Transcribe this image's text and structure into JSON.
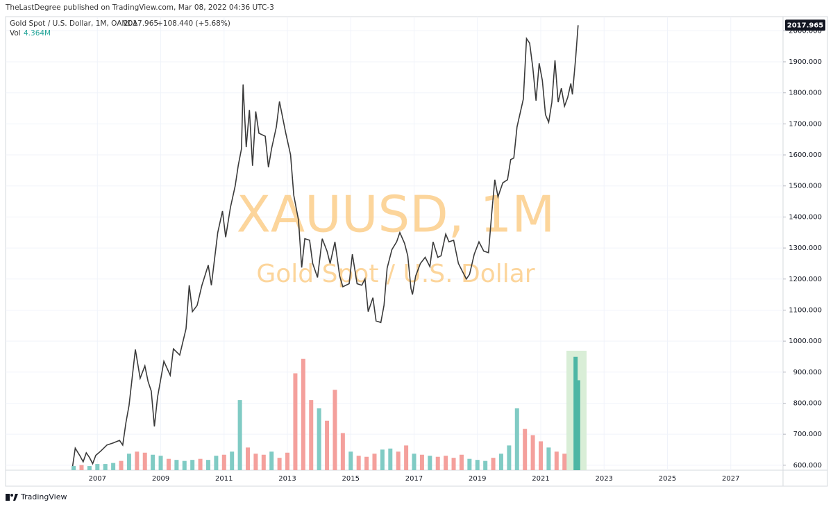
{
  "header": {
    "published": "TheLastDegree published on TradingView.com, Mar 08, 2022 04:36 UTC-3",
    "symbol": "Gold Spot / U.S. Dollar, 1M, OANDA",
    "price": "2017.965",
    "change": "+108.440 (+5.68%)",
    "vol_title": "Vol",
    "vol_value": "4.364M"
  },
  "footer": {
    "brand": "TradingView"
  },
  "chart_data": {
    "type": "line",
    "watermark": "XAUUSD, 1M",
    "watermark_subtitle": "Gold Spot / U.S. Dollar",
    "last_price_label": "2017.965",
    "xlim": [
      2004.1,
      2028.65
    ],
    "xticks": [
      2007,
      2009,
      2011,
      2013,
      2015,
      2017,
      2019,
      2021,
      2023,
      2025,
      2027
    ],
    "ylim": [
      584,
      2045.5
    ],
    "yticks": [
      {
        "value": 600,
        "label": "600.000"
      },
      {
        "value": 700,
        "label": "700.000"
      },
      {
        "value": 800,
        "label": "800.000"
      },
      {
        "value": 900,
        "label": "900.000"
      },
      {
        "value": 1000,
        "label": "1000.000"
      },
      {
        "value": 1100,
        "label": "1100.000"
      },
      {
        "value": 1200,
        "label": "1200.000"
      },
      {
        "value": 1300,
        "label": "1300.000"
      },
      {
        "value": 1400,
        "label": "1400.000"
      },
      {
        "value": 1500,
        "label": "1500.000"
      },
      {
        "value": 1600,
        "label": "1600.000"
      },
      {
        "value": 1700,
        "label": "1700.000"
      },
      {
        "value": 1800,
        "label": "1800.000"
      },
      {
        "value": 1900,
        "label": "1900.000"
      },
      {
        "value": 2000,
        "label": "2000.000"
      }
    ],
    "y2lim": [
      0,
      22
    ],
    "grid": true,
    "series": [
      {
        "name": "Gold Spot / U.S. Dollar",
        "color": "#3a3a3a",
        "x": [
          2006.2,
          2006.3,
          2006.45,
          2006.55,
          2006.65,
          2006.75,
          2006.85,
          2006.95,
          2007.1,
          2007.3,
          2007.5,
          2007.7,
          2007.8,
          2007.9,
          2008.0,
          2008.1,
          2008.2,
          2008.35,
          2008.5,
          2008.6,
          2008.7,
          2008.8,
          2008.9,
          2009.1,
          2009.3,
          2009.4,
          2009.6,
          2009.8,
          2009.9,
          2010.0,
          2010.15,
          2010.3,
          2010.5,
          2010.6,
          2010.8,
          2010.95,
          2011.05,
          2011.2,
          2011.35,
          2011.45,
          2011.55,
          2011.6,
          2011.7,
          2011.8,
          2011.9,
          2012.0,
          2012.1,
          2012.3,
          2012.4,
          2012.5,
          2012.65,
          2012.75,
          2012.85,
          2012.95,
          2013.1,
          2013.2,
          2013.35,
          2013.45,
          2013.55,
          2013.7,
          2013.8,
          2013.95,
          2014.1,
          2014.25,
          2014.35,
          2014.5,
          2014.65,
          2014.75,
          2014.95,
          2015.05,
          2015.2,
          2015.35,
          2015.45,
          2015.55,
          2015.7,
          2015.8,
          2015.95,
          2016.05,
          2016.15,
          2016.3,
          2016.45,
          2016.55,
          2016.7,
          2016.8,
          2016.9,
          2016.95,
          2017.05,
          2017.2,
          2017.35,
          2017.5,
          2017.6,
          2017.75,
          2017.85,
          2018.0,
          2018.1,
          2018.25,
          2018.4,
          2018.55,
          2018.65,
          2018.75,
          2018.9,
          2019.05,
          2019.2,
          2019.35,
          2019.45,
          2019.55,
          2019.65,
          2019.8,
          2019.95,
          2020.05,
          2020.15,
          2020.25,
          2020.45,
          2020.55,
          2020.65,
          2020.75,
          2020.85,
          2020.95,
          2021.05,
          2021.15,
          2021.25,
          2021.35,
          2021.45,
          2021.55,
          2021.65,
          2021.75,
          2021.85,
          2021.95,
          2022.0,
          2022.1,
          2022.18
        ],
        "values": [
          585,
          655,
          630,
          611,
          640,
          625,
          605,
          632,
          645,
          665,
          672,
          680,
          665,
          737,
          793,
          884,
          973,
          880,
          920,
          870,
          839,
          725,
          820,
          935,
          890,
          975,
          955,
          1040,
          1180,
          1095,
          1115,
          1180,
          1245,
          1180,
          1350,
          1419,
          1335,
          1430,
          1500,
          1567,
          1620,
          1827,
          1625,
          1745,
          1565,
          1740,
          1670,
          1660,
          1560,
          1620,
          1690,
          1772,
          1720,
          1670,
          1600,
          1470,
          1390,
          1237,
          1330,
          1325,
          1250,
          1205,
          1330,
          1290,
          1250,
          1320,
          1210,
          1175,
          1185,
          1280,
          1185,
          1180,
          1200,
          1095,
          1140,
          1065,
          1060,
          1115,
          1235,
          1295,
          1320,
          1350,
          1315,
          1275,
          1170,
          1150,
          1210,
          1250,
          1270,
          1240,
          1320,
          1270,
          1275,
          1345,
          1320,
          1325,
          1250,
          1220,
          1200,
          1215,
          1280,
          1320,
          1290,
          1285,
          1410,
          1520,
          1465,
          1510,
          1520,
          1585,
          1590,
          1690,
          1780,
          1975,
          1960,
          1880,
          1775,
          1895,
          1840,
          1730,
          1705,
          1770,
          1905,
          1770,
          1815,
          1757,
          1785,
          1830,
          1795,
          1910,
          2018
        ]
      },
      {
        "name": "Vol",
        "type": "bar",
        "axis": "y2",
        "x": [
          2006.25,
          2006.5,
          2006.75,
          2007,
          2007.25,
          2007.5,
          2007.75,
          2008,
          2008.25,
          2008.5,
          2008.75,
          2009,
          2009.25,
          2009.5,
          2009.75,
          2010,
          2010.25,
          2010.5,
          2010.75,
          2011,
          2011.25,
          2011.5,
          2011.75,
          2012,
          2012.25,
          2012.5,
          2012.75,
          2013,
          2013.25,
          2013.5,
          2013.75,
          2014,
          2014.25,
          2014.5,
          2014.75,
          2015,
          2015.25,
          2015.5,
          2015.75,
          2016,
          2016.25,
          2016.5,
          2016.75,
          2017,
          2017.25,
          2017.5,
          2017.75,
          2018,
          2018.25,
          2018.5,
          2018.75,
          2019,
          2019.25,
          2019.5,
          2019.75,
          2020,
          2020.25,
          2020.5,
          2020.75,
          2021,
          2021.25,
          2021.5,
          2021.75,
          2022.1,
          2022.18
        ],
        "values": [
          0.2,
          0.25,
          0.2,
          0.3,
          0.3,
          0.35,
          0.45,
          0.8,
          0.9,
          0.85,
          0.75,
          0.7,
          0.55,
          0.5,
          0.45,
          0.5,
          0.55,
          0.5,
          0.7,
          0.75,
          0.9,
          3.4,
          1.1,
          0.8,
          0.75,
          0.9,
          0.6,
          0.85,
          4.7,
          5.4,
          3.4,
          3.0,
          2.4,
          3.9,
          1.8,
          0.9,
          0.7,
          0.65,
          0.8,
          1.0,
          1.05,
          0.9,
          1.2,
          0.8,
          0.75,
          0.7,
          0.65,
          0.7,
          0.6,
          0.75,
          0.55,
          0.5,
          0.45,
          0.6,
          0.8,
          1.2,
          3.0,
          2.0,
          1.7,
          1.4,
          1.1,
          0.9,
          0.8,
          5.5,
          4.364
        ],
        "colors": [
          "#80cbc4",
          "#f4a09c",
          "#80cbc4",
          "#80cbc4",
          "#80cbc4",
          "#80cbc4",
          "#f4a09c",
          "#80cbc4",
          "#f4a09c",
          "#f4a09c",
          "#80cbc4",
          "#80cbc4",
          "#f4a09c",
          "#80cbc4",
          "#80cbc4",
          "#80cbc4",
          "#f4a09c",
          "#80cbc4",
          "#80cbc4",
          "#f4a09c",
          "#80cbc4",
          "#80cbc4",
          "#f4a09c",
          "#f4a09c",
          "#f4a09c",
          "#80cbc4",
          "#f4a09c",
          "#f4a09c",
          "#f4a09c",
          "#f4a09c",
          "#f4a09c",
          "#80cbc4",
          "#f4a09c",
          "#f4a09c",
          "#f4a09c",
          "#80cbc4",
          "#f4a09c",
          "#f4a09c",
          "#f4a09c",
          "#80cbc4",
          "#80cbc4",
          "#f4a09c",
          "#f4a09c",
          "#80cbc4",
          "#f4a09c",
          "#80cbc4",
          "#f4a09c",
          "#f4a09c",
          "#f4a09c",
          "#f4a09c",
          "#80cbc4",
          "#80cbc4",
          "#80cbc4",
          "#f4a09c",
          "#80cbc4",
          "#80cbc4",
          "#80cbc4",
          "#f4a09c",
          "#f4a09c",
          "#f4a09c",
          "#80cbc4",
          "#f4a09c",
          "#f4a09c",
          "#4db6a4",
          "#4db6a4"
        ]
      }
    ]
  }
}
